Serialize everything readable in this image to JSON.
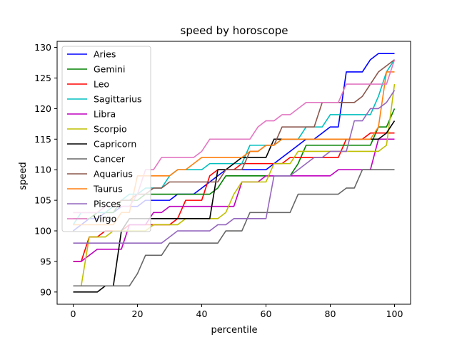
{
  "chart_data": {
    "type": "line",
    "title": "speed by horoscope",
    "xlabel": "percentile",
    "ylabel": "speed",
    "xlim": [
      -5,
      105
    ],
    "ylim": [
      88.0,
      131.0
    ],
    "xticks": [
      0,
      20,
      40,
      60,
      80,
      100
    ],
    "yticks": [
      90,
      95,
      100,
      105,
      110,
      115,
      120,
      125,
      130
    ],
    "grid": false,
    "legend_position": "top-left",
    "x": [
      0,
      2.5,
      5,
      7.5,
      10,
      12.5,
      15,
      17.5,
      20,
      22.5,
      25,
      27.5,
      30,
      32.5,
      35,
      37.5,
      40,
      42.5,
      45,
      47.5,
      50,
      52.5,
      55,
      57.5,
      60,
      62.5,
      65,
      67.5,
      70,
      72.5,
      75,
      77.5,
      80,
      82.5,
      85,
      87.5,
      90,
      92.5,
      95,
      97.5,
      100
    ],
    "series": [
      {
        "name": "Aries",
        "color": "#0000ff",
        "values": [
          100,
          101,
          102,
          102,
          103,
          103,
          104,
          104,
          104,
          105,
          105,
          105,
          105,
          106,
          106,
          106,
          107,
          108,
          109,
          110,
          110,
          110,
          110,
          110,
          110,
          111,
          112,
          113,
          114,
          115,
          115,
          116,
          117,
          117,
          126,
          126,
          126,
          128,
          129,
          129,
          129
        ]
      },
      {
        "name": "Gemini",
        "color": "#008000",
        "values": [
          102,
          102,
          102,
          103,
          103,
          103,
          105,
          105,
          105,
          106,
          106,
          106,
          106,
          106,
          106,
          106,
          106,
          106,
          107,
          109,
          109,
          109,
          109,
          109,
          109,
          109,
          109,
          109,
          111,
          114,
          114,
          114,
          114,
          114,
          114,
          114,
          114,
          114,
          117,
          117,
          120
        ]
      },
      {
        "name": "Leo",
        "color": "#ff0000",
        "values": [
          95,
          95,
          99,
          99,
          100,
          100,
          100,
          101,
          101,
          101,
          101,
          101,
          101,
          102,
          105,
          105,
          105,
          109,
          110,
          110,
          110,
          111,
          111,
          111,
          111,
          111,
          111,
          112,
          112,
          112,
          112,
          112,
          112,
          112,
          115,
          115,
          115,
          116,
          116,
          116,
          116
        ]
      },
      {
        "name": "Sagittarius",
        "color": "#00bfbf",
        "values": [
          101,
          103,
          103,
          103,
          103,
          104,
          105,
          106,
          106,
          107,
          107,
          107,
          109,
          110,
          110,
          110,
          110,
          111,
          111,
          111,
          111,
          111,
          114,
          114,
          114,
          114,
          115,
          115,
          115,
          117,
          117,
          117,
          119,
          119,
          119,
          119,
          119,
          119,
          122,
          126,
          128
        ]
      },
      {
        "name": "Libra",
        "color": "#bf00bf",
        "values": [
          95,
          95,
          96,
          97,
          97,
          97,
          97,
          101,
          101,
          101,
          103,
          103,
          104,
          104,
          104,
          104,
          104,
          104,
          104,
          104,
          104,
          108,
          108,
          108,
          109,
          109,
          109,
          109,
          109,
          109,
          109,
          109,
          109,
          110,
          110,
          110,
          110,
          110,
          115,
          115,
          115
        ]
      },
      {
        "name": "Scorpio",
        "color": "#bfbf00",
        "values": [
          91,
          91,
          99,
          99,
          99,
          100,
          100,
          100,
          100,
          100,
          101,
          101,
          101,
          101,
          102,
          102,
          102,
          102,
          102,
          103,
          106,
          108,
          108,
          108,
          108,
          111,
          111,
          111,
          113,
          113,
          113,
          113,
          113,
          113,
          113,
          113,
          113,
          113,
          113,
          114,
          124
        ]
      },
      {
        "name": "Capricorn",
        "color": "#000000",
        "values": [
          90,
          90,
          90,
          90,
          91,
          91,
          100,
          102,
          102,
          102,
          102,
          102,
          102,
          102,
          102,
          102,
          102,
          102,
          110,
          110,
          111,
          112,
          112,
          112,
          112,
          115,
          115,
          115,
          115,
          115,
          115,
          115,
          115,
          115,
          115,
          115,
          115,
          115,
          115,
          116,
          118
        ]
      },
      {
        "name": "Cancer",
        "color": "#666666",
        "values": [
          91,
          91,
          91,
          91,
          91,
          91,
          91,
          91,
          93,
          96,
          96,
          96,
          98,
          98,
          98,
          98,
          98,
          98,
          98,
          100,
          100,
          100,
          103,
          103,
          103,
          103,
          103,
          103,
          106,
          106,
          106,
          106,
          106,
          106,
          107,
          107,
          110,
          110,
          110,
          110,
          110
        ]
      },
      {
        "name": "Aquarius",
        "color": "#8c564b",
        "values": [
          103,
          103,
          103,
          103,
          104,
          104,
          105,
          105,
          106,
          106,
          107,
          107,
          108,
          108,
          108,
          108,
          108,
          108,
          108,
          110,
          110,
          110,
          113,
          113,
          114,
          114,
          117,
          117,
          117,
          117,
          117,
          121,
          121,
          121,
          121,
          121,
          122,
          124,
          126,
          127,
          128
        ]
      },
      {
        "name": "Taurus",
        "color": "#ff7f0e",
        "values": [
          101,
          101,
          101,
          101,
          101,
          101,
          103,
          103,
          109,
          109,
          109,
          109,
          109,
          110,
          110,
          111,
          112,
          112,
          112,
          112,
          112,
          112,
          113,
          113,
          114,
          114,
          115,
          115,
          115,
          115,
          115,
          115,
          115,
          115,
          115,
          115,
          115,
          115,
          117,
          126,
          126
        ]
      },
      {
        "name": "Pisces",
        "color": "#9467bd",
        "values": [
          98,
          98,
          98,
          98,
          98,
          98,
          98,
          98,
          98,
          98,
          98,
          98,
          99,
          100,
          100,
          100,
          100,
          100,
          101,
          101,
          102,
          102,
          102,
          102,
          102,
          109,
          109,
          109,
          110,
          111,
          112,
          112,
          113,
          113,
          113,
          118,
          118,
          120,
          120,
          121,
          123
        ]
      },
      {
        "name": "Virgo",
        "color": "#e377c2",
        "values": [
          103,
          103,
          103,
          103,
          104,
          104,
          104,
          104,
          106,
          110,
          110,
          112,
          112,
          112,
          112,
          112,
          113,
          115,
          115,
          115,
          115,
          115,
          115,
          117,
          118,
          118,
          119,
          119,
          120,
          121,
          121,
          121,
          121,
          121,
          124,
          124,
          124,
          124,
          124,
          124,
          128
        ]
      }
    ]
  }
}
